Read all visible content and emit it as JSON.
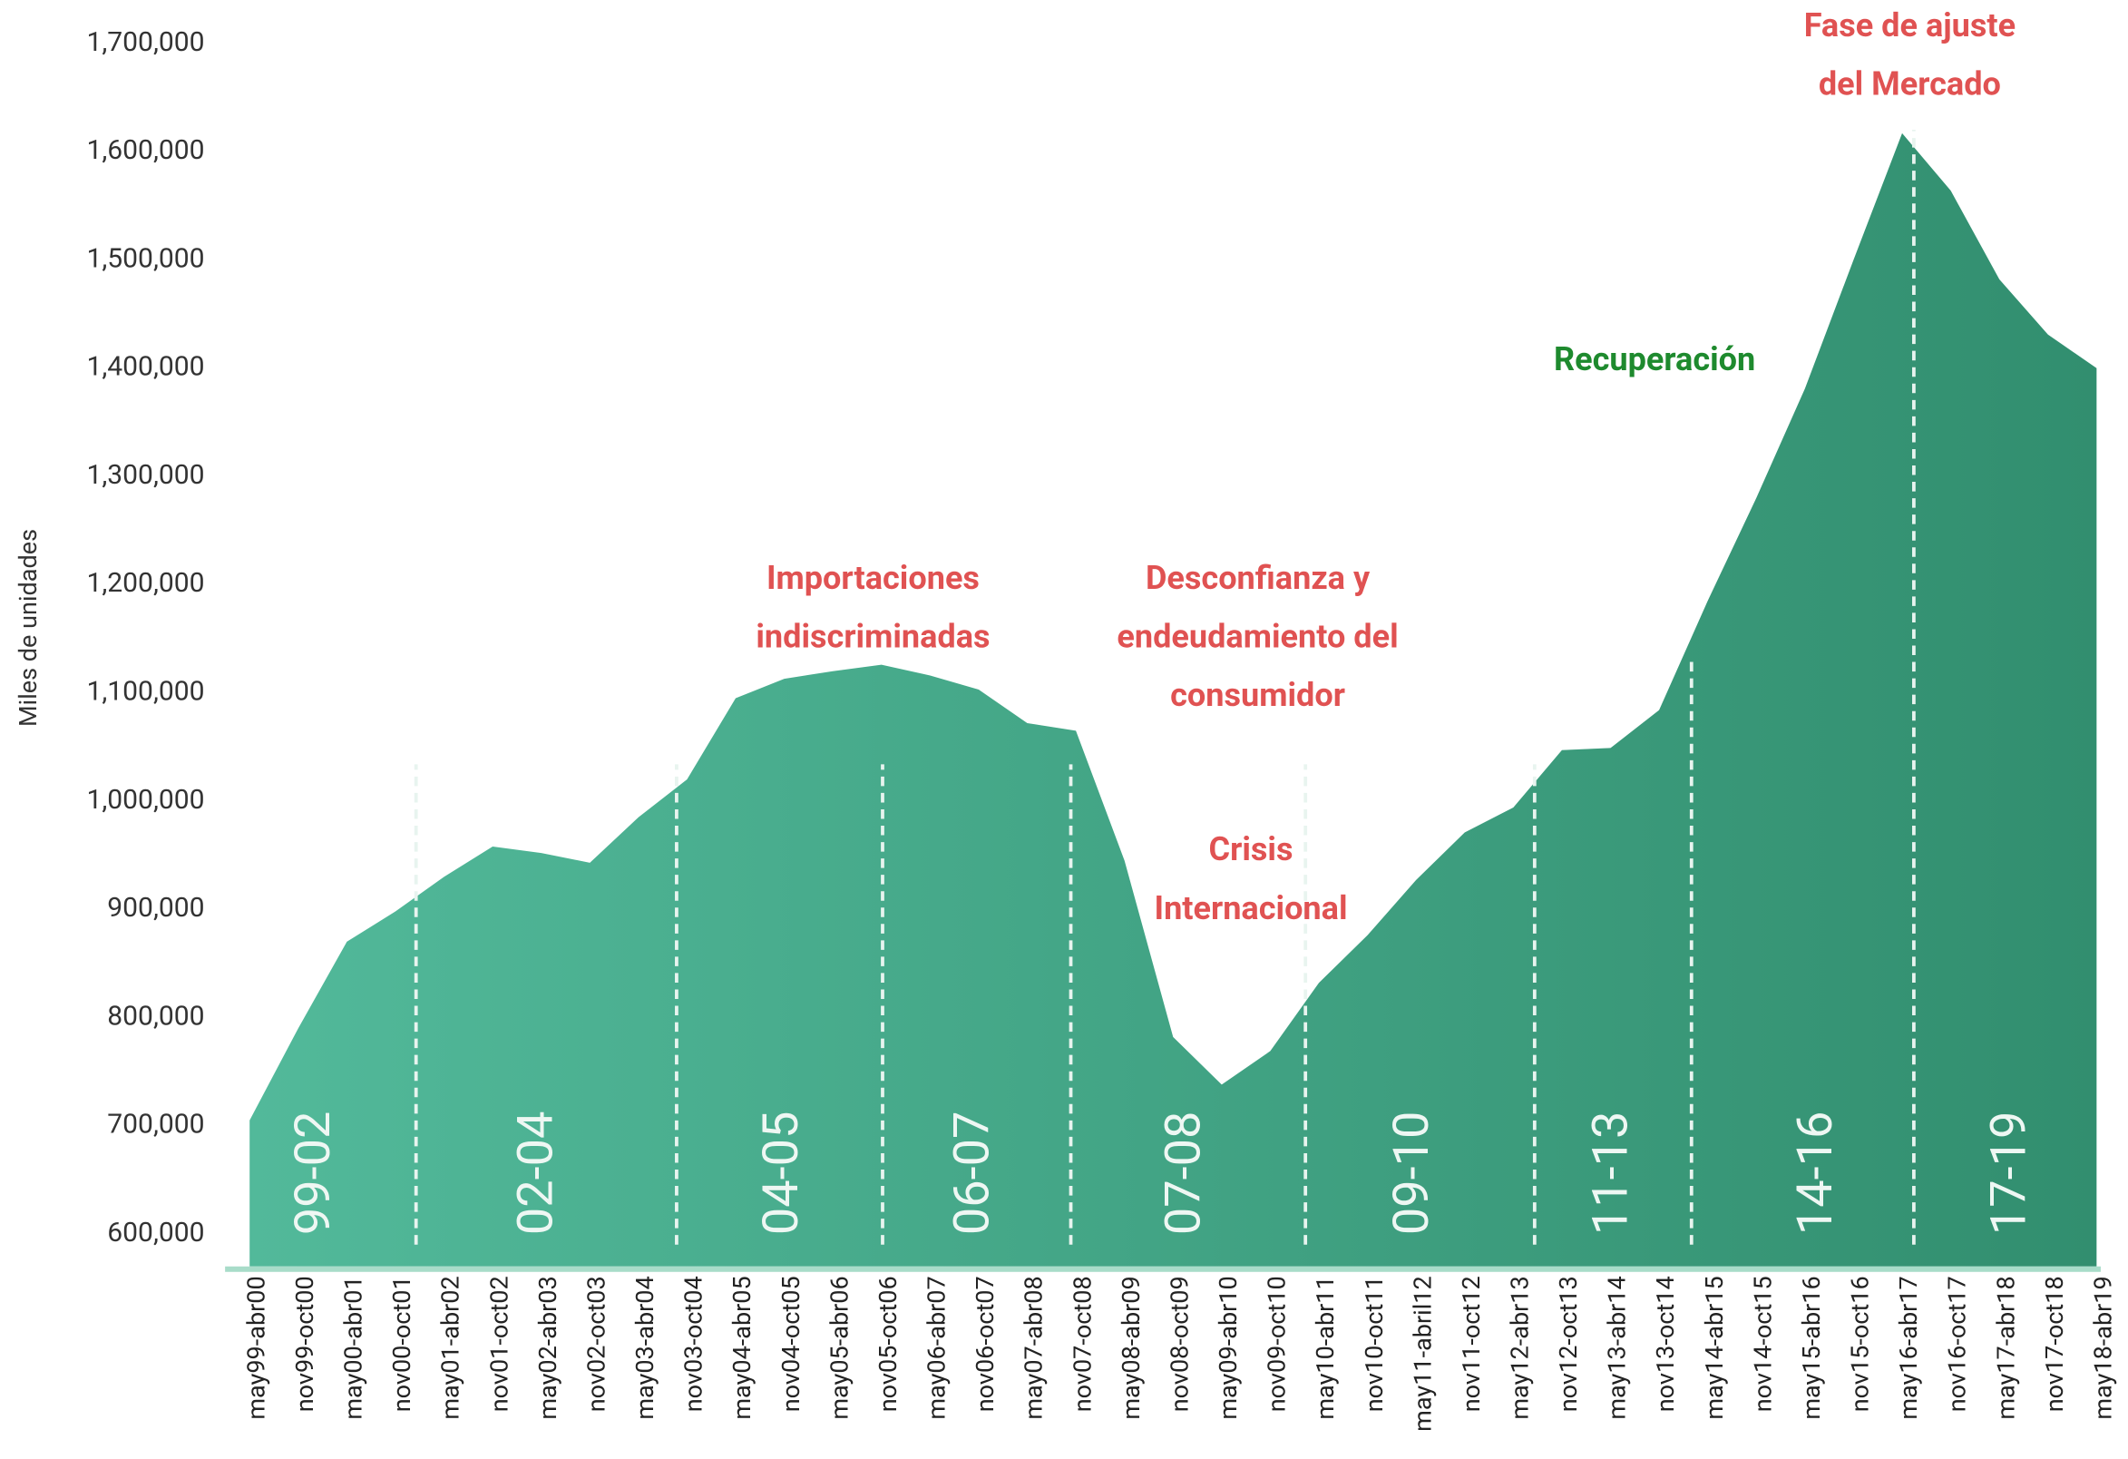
{
  "chart_data": {
    "type": "area",
    "y_axis_label": "Miles de unidades",
    "color": "#52b99a",
    "categories": [
      "may99-abr00",
      "nov99-oct00",
      "may00-abr01",
      "nov00-oct01",
      "may01-abr02",
      "nov01-oct02",
      "may02-abr03",
      "nov02-oct03",
      "may03-abr04",
      "nov03-oct04",
      "may04-abr05",
      "nov04-oct05",
      "may05-abr06",
      "nov05-oct06",
      "may06-abr07",
      "nov06-oct07",
      "may07-abr08",
      "nov07-oct08",
      "may08-abr09",
      "nov08-oct09",
      "may09-abr10",
      "nov09-oct10",
      "may10-abr11",
      "nov10-oct11",
      "may11-abril12",
      "nov11-oct12",
      "may12-abr13",
      "nov12-oct13",
      "may13-abr14",
      "nov13-oct14",
      "may14-abr15",
      "nov14-oct15",
      "may15-abr16",
      "nov15-oct16",
      "may16-abr17",
      "nov16-oct17",
      "may17-abr18",
      "nov17-oct18",
      "may18-abr19"
    ],
    "values": [
      705000,
      790000,
      870000,
      898000,
      930000,
      958000,
      952000,
      943000,
      985000,
      1020000,
      1095000,
      1113000,
      1120000,
      1126000,
      1116000,
      1103000,
      1072000,
      1065000,
      945000,
      782000,
      738000,
      769000,
      832000,
      876000,
      927000,
      971000,
      994000,
      1047000,
      1049000,
      1084000,
      1185000,
      1280000,
      1381000,
      1500000,
      1617000,
      1564000,
      1482000,
      1431000,
      1400000
    ],
    "ylim": [
      570000,
      1740000
    ],
    "yticks": [
      {
        "value": 600000,
        "label": "600,000"
      },
      {
        "value": 700000,
        "label": "700,000"
      },
      {
        "value": 800000,
        "label": "800,000"
      },
      {
        "value": 900000,
        "label": "900,000"
      },
      {
        "value": 1000000,
        "label": "1,000,000"
      },
      {
        "value": 1100000,
        "label": "1,100,000"
      },
      {
        "value": 1200000,
        "label": "1,200,000"
      },
      {
        "value": 1300000,
        "label": "1,300,000"
      },
      {
        "value": 1400000,
        "label": "1,400,000"
      },
      {
        "value": 1500000,
        "label": "1,500,000"
      },
      {
        "value": 1600000,
        "label": "1,600,000"
      },
      {
        "value": 1700000,
        "label": "1,700,000"
      }
    ],
    "periods": [
      "99-02",
      "02-04",
      "04-05",
      "06-07",
      "07-08",
      "09-10",
      "11-13",
      "14-16",
      "17-19"
    ],
    "annotations": [
      {
        "lines": [
          "Importaciones",
          "indiscriminadas"
        ],
        "color": "#e05252"
      },
      {
        "lines": [
          "Desconfianza y",
          "endeudamiento del",
          "consumidor"
        ],
        "color": "#e05252"
      },
      {
        "lines": [
          "Crisis",
          "Internacional"
        ],
        "color": "#e05252"
      },
      {
        "lines": [
          "Recuperación"
        ],
        "color": "#1e8a2e"
      },
      {
        "lines": [
          "Fase de ajuste",
          "del Mercado"
        ],
        "color": "#e05252"
      }
    ]
  }
}
